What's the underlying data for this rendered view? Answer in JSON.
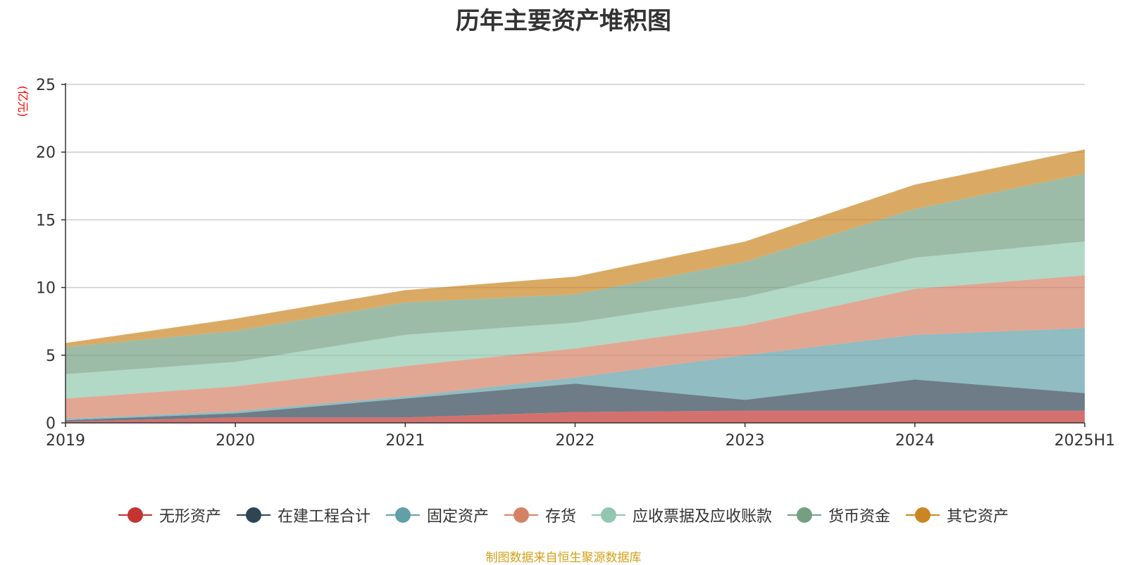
{
  "chart_data": {
    "type": "area",
    "title": "历年主要资产堆积图",
    "ylabel": "(亿元)",
    "xlabel": "",
    "categories": [
      "2019",
      "2020",
      "2021",
      "2022",
      "2023",
      "2024",
      "2025H1"
    ],
    "ylim": [
      0,
      25
    ],
    "yticks": [
      0,
      5,
      10,
      15,
      20,
      25
    ],
    "stacked": true,
    "grid": true,
    "legend_position": "bottom",
    "series": [
      {
        "name": "无形资产",
        "color": "#c23531",
        "values": [
          0.1,
          0.4,
          0.4,
          0.8,
          0.9,
          0.9,
          0.9
        ]
      },
      {
        "name": "在建工程合计",
        "color": "#2f4554",
        "values": [
          0.1,
          0.3,
          1.4,
          2.1,
          0.8,
          2.3,
          1.3
        ]
      },
      {
        "name": "固定资产",
        "color": "#61a0a8",
        "values": [
          0.1,
          0.15,
          0.15,
          0.45,
          3.3,
          3.3,
          4.8
        ]
      },
      {
        "name": "存货",
        "color": "#d48265",
        "values": [
          1.5,
          1.85,
          2.25,
          2.15,
          2.2,
          3.4,
          3.9
        ]
      },
      {
        "name": "应收票据及应收账款",
        "color": "#91c7ae",
        "values": [
          1.8,
          1.8,
          2.3,
          1.9,
          2.1,
          2.3,
          2.5
        ]
      },
      {
        "name": "货币资金",
        "color": "#749f83",
        "values": [
          2.0,
          2.3,
          2.4,
          2.1,
          2.6,
          3.6,
          5.0
        ]
      },
      {
        "name": "其它资产",
        "color": "#ca8622",
        "values": [
          0.3,
          0.9,
          0.9,
          1.3,
          1.5,
          1.8,
          1.8
        ]
      }
    ]
  },
  "source_text": "制图数据来自恒生聚源数据库"
}
